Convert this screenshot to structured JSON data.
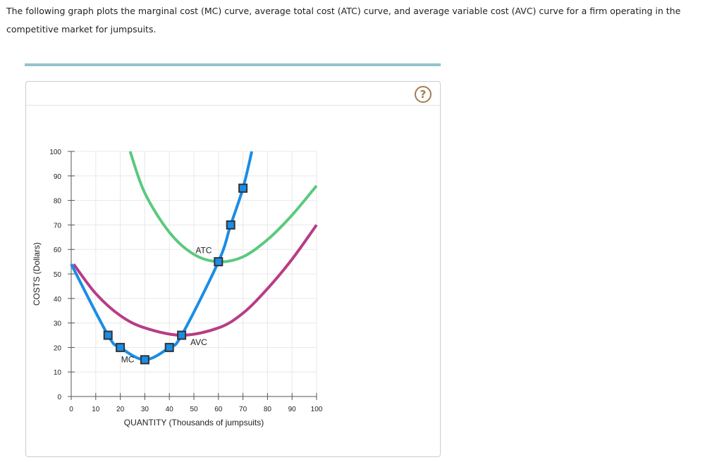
{
  "question": "The following graph plots the marginal cost (MC) curve, average total cost (ATC) curve, and average variable cost (AVC) curve for a firm operating in the competitive market for jumpsuits.",
  "help_label": "?",
  "chart_data": {
    "type": "line",
    "xlabel": "QUANTITY (Thousands of jumpsuits)",
    "ylabel": "COSTS (Dollars)",
    "xlim": [
      0,
      100
    ],
    "ylim": [
      0,
      100
    ],
    "xticks": [
      0,
      10,
      20,
      30,
      40,
      50,
      60,
      70,
      80,
      90,
      100
    ],
    "yticks": [
      0,
      10,
      20,
      30,
      40,
      50,
      60,
      70,
      80,
      90,
      100
    ],
    "grid": true,
    "series": [
      {
        "name": "ATC",
        "label": "ATC",
        "color": "#5cc97f",
        "x": [
          24,
          30,
          40,
          50,
          60,
          70,
          80,
          90,
          100
        ],
        "y": [
          100,
          83,
          67,
          58,
          55,
          57,
          64,
          74,
          86
        ]
      },
      {
        "name": "AVC",
        "label": "AVC",
        "color": "#b83c86",
        "x": [
          1,
          10,
          20,
          30,
          45,
          60,
          70,
          80,
          90,
          100
        ],
        "y": [
          54,
          42,
          33,
          28,
          25,
          28,
          34,
          44,
          56,
          70
        ]
      },
      {
        "name": "MC",
        "label": "MC",
        "color": "#1a8de6",
        "x": [
          0,
          15,
          20,
          30,
          40,
          45,
          60,
          65,
          70,
          73.6
        ],
        "y": [
          54,
          25,
          20,
          15,
          20,
          25,
          55,
          70,
          85,
          100
        ]
      }
    ],
    "points": {
      "name": "MC markers",
      "color": "#1a8de6",
      "x": [
        15,
        20,
        30,
        40,
        45,
        60,
        65,
        70
      ],
      "y": [
        25,
        20,
        15,
        20,
        25,
        55,
        70,
        85
      ]
    },
    "labels": [
      {
        "text": "ATC",
        "x": 54,
        "y": 58.5
      },
      {
        "text": "AVC",
        "x": 52,
        "y": 21
      },
      {
        "text": "MC",
        "x": 23,
        "y": 14
      }
    ]
  }
}
